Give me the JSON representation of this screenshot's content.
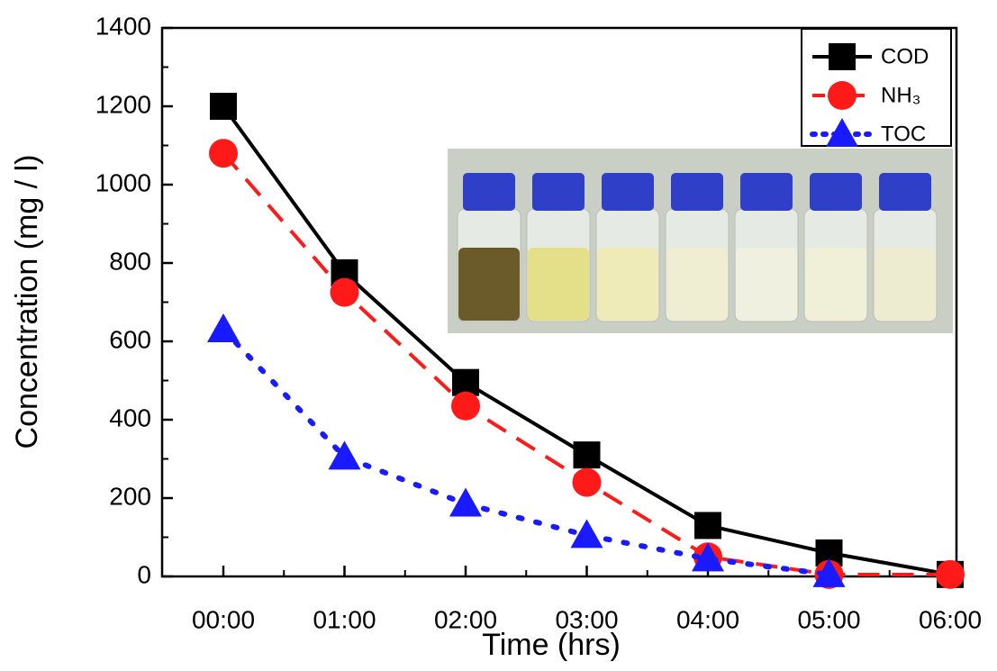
{
  "chart_data": {
    "type": "line",
    "x_label": "Time (hrs)",
    "y_label": "Concentration (mg / l)",
    "categories": [
      "00:00",
      "01:00",
      "02:00",
      "03:00",
      "04:00",
      "05:00",
      "06:00"
    ],
    "series": [
      {
        "name": "COD",
        "color": "#000000",
        "dash": "solid",
        "marker": "square",
        "values": [
          1200,
          775,
          495,
          310,
          130,
          60,
          5
        ]
      },
      {
        "name": "NH₃",
        "color": "#ff1a1a",
        "dash": "dashed",
        "marker": "circle",
        "values": [
          1080,
          725,
          435,
          240,
          50,
          5,
          5
        ]
      },
      {
        "name": "TOC",
        "color": "#1a1aff",
        "dash": "dotted",
        "marker": "triangle",
        "values": [
          630,
          305,
          185,
          105,
          45,
          5,
          null
        ]
      }
    ],
    "ylim": [
      0,
      1400
    ],
    "yticks": [
      0,
      200,
      400,
      600,
      800,
      1000,
      1200,
      1400
    ],
    "legend": "upper right"
  }
}
